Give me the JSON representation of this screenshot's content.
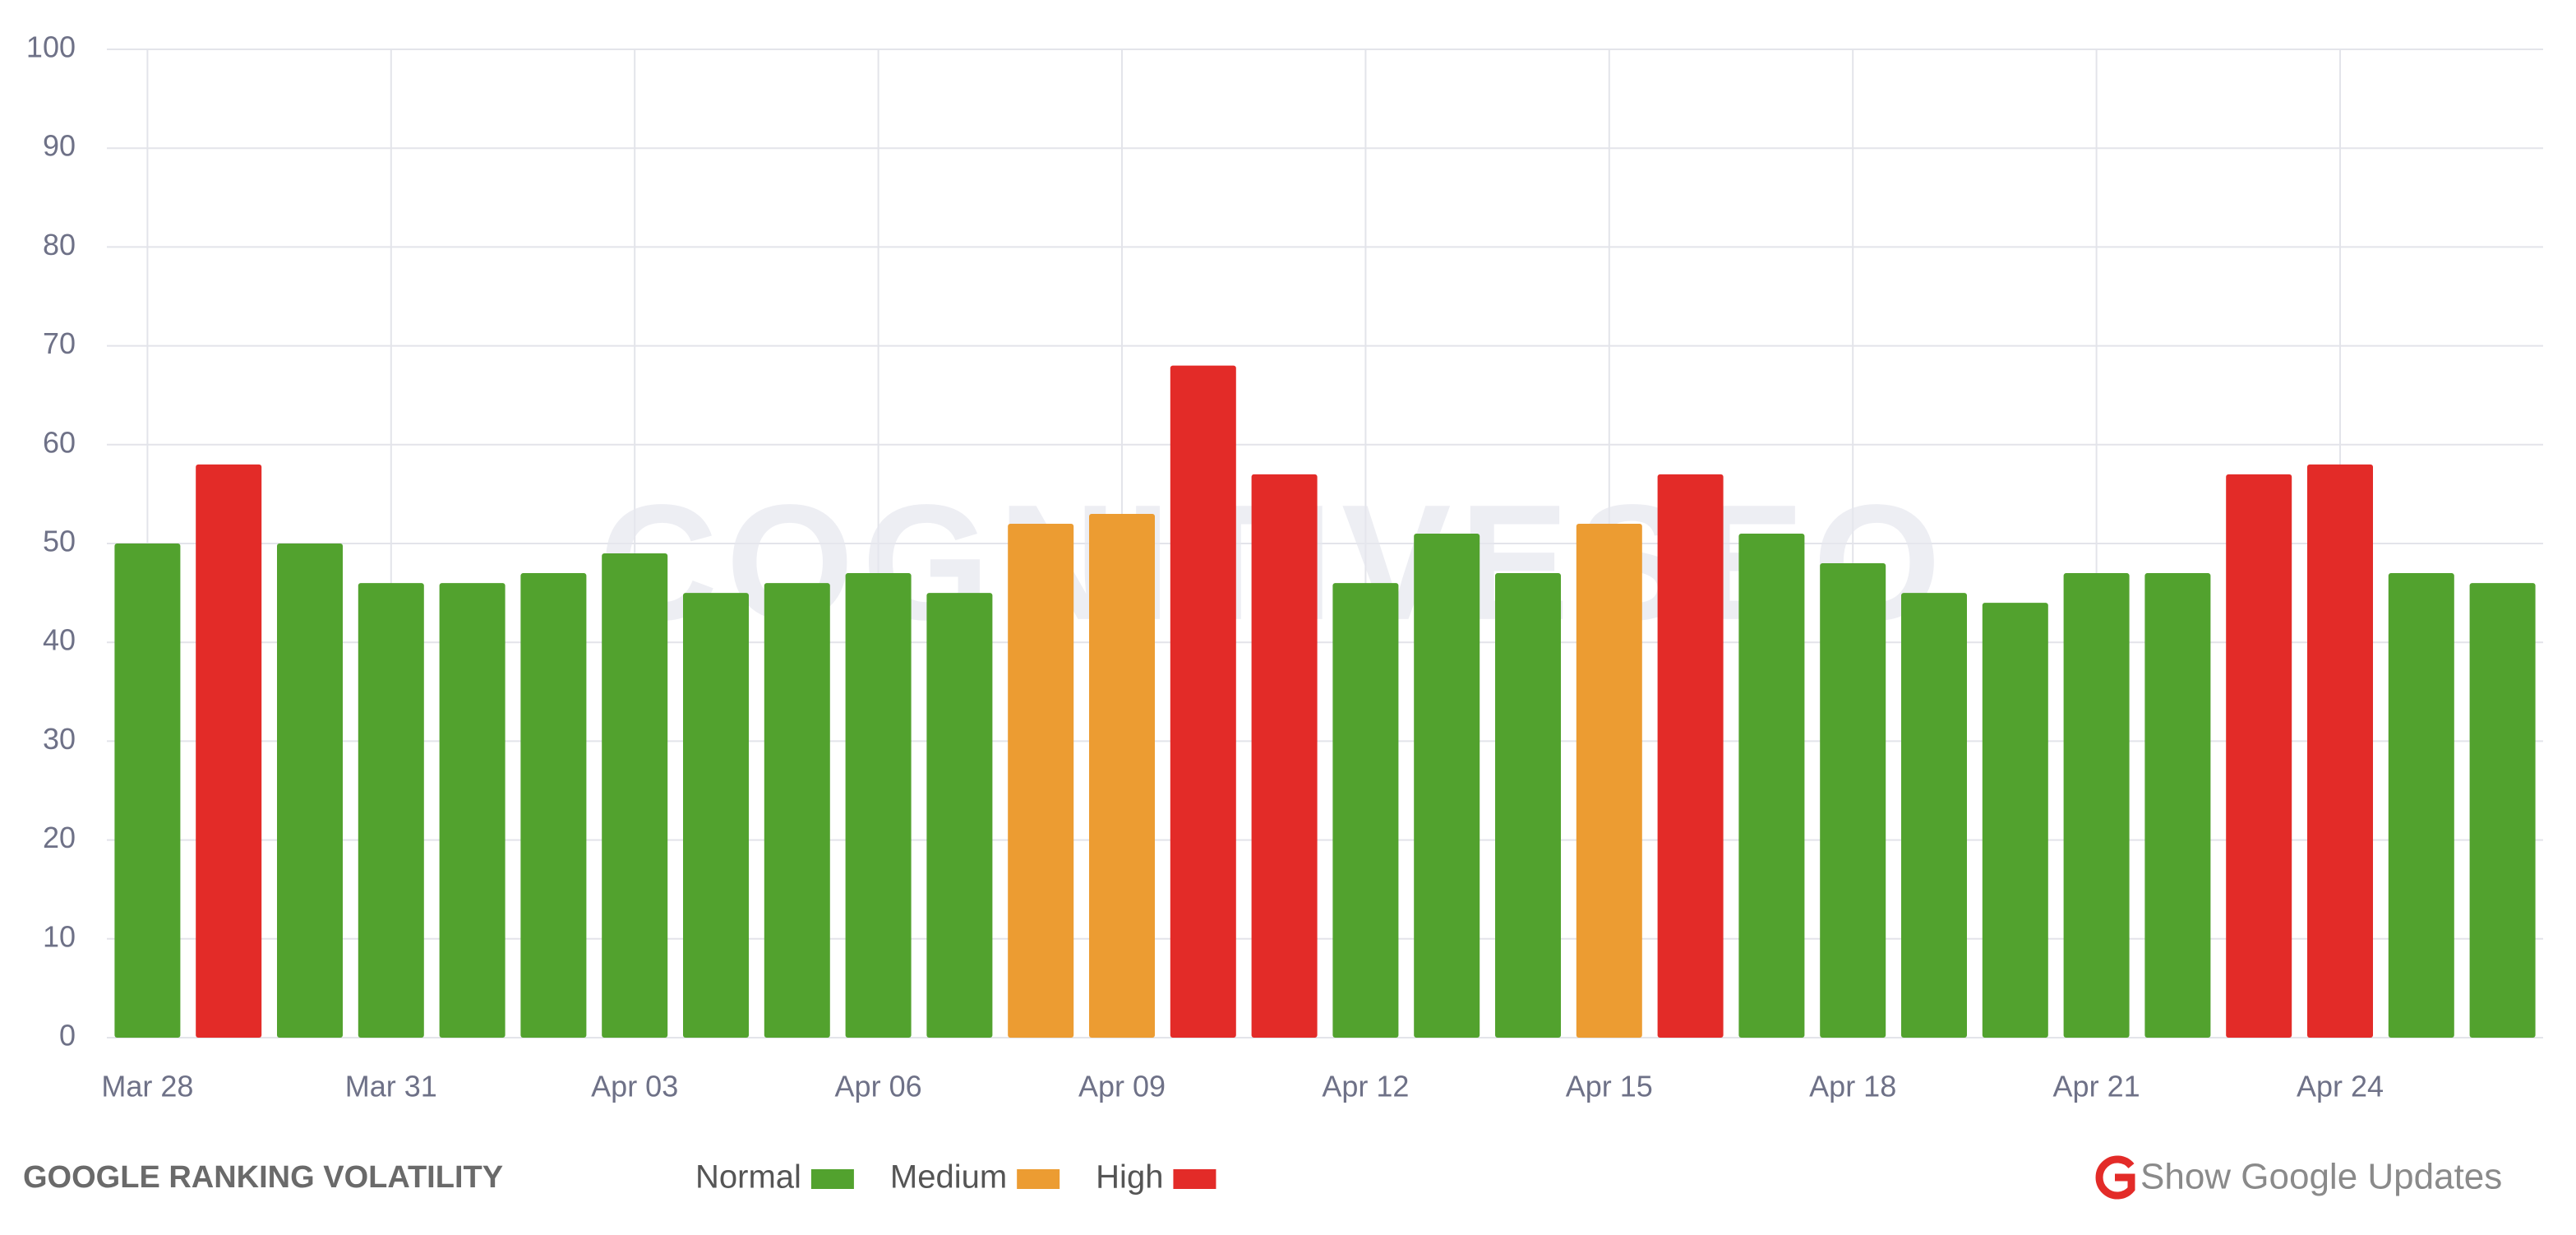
{
  "chart_data": {
    "type": "bar",
    "title": "GOOGLE RANKING VOLATILITY",
    "watermark": "COGNITIVESEO",
    "categories": [
      "Mar 28",
      null,
      null,
      "Mar 31",
      null,
      null,
      "Apr 03",
      null,
      null,
      "Apr 06",
      null,
      null,
      "Apr 09",
      null,
      null,
      "Apr 12",
      null,
      null,
      "Apr 15",
      null,
      null,
      "Apr 18",
      null,
      null,
      "Apr 21",
      null,
      null,
      "Apr 24",
      null,
      null
    ],
    "values": [
      50,
      58,
      50,
      46,
      46,
      47,
      49,
      45,
      46,
      47,
      45,
      52,
      53,
      68,
      57,
      46,
      51,
      47,
      52,
      57,
      51,
      48,
      45,
      44,
      47,
      47,
      57,
      58,
      47,
      46
    ],
    "colors": [
      "#52a22e",
      "#e32b28",
      "#52a22e",
      "#52a22e",
      "#52a22e",
      "#52a22e",
      "#52a22e",
      "#52a22e",
      "#52a22e",
      "#52a22e",
      "#52a22e",
      "#ec9c32",
      "#ec9c32",
      "#e32b28",
      "#e32b28",
      "#52a22e",
      "#52a22e",
      "#52a22e",
      "#ec9c32",
      "#e32b28",
      "#52a22e",
      "#52a22e",
      "#52a22e",
      "#52a22e",
      "#52a22e",
      "#52a22e",
      "#e32b28",
      "#e32b28",
      "#52a22e",
      "#52a22e"
    ],
    "legend": [
      {
        "name": "Normal",
        "color": "#52a22e"
      },
      {
        "name": "Medium",
        "color": "#ec9c32"
      },
      {
        "name": "High",
        "color": "#e32b28"
      }
    ],
    "ylim": [
      0,
      100
    ],
    "yticks": [
      0,
      10,
      20,
      30,
      40,
      50,
      60,
      70,
      80,
      90,
      100
    ],
    "grid": true,
    "link": "Show Google Updates"
  }
}
